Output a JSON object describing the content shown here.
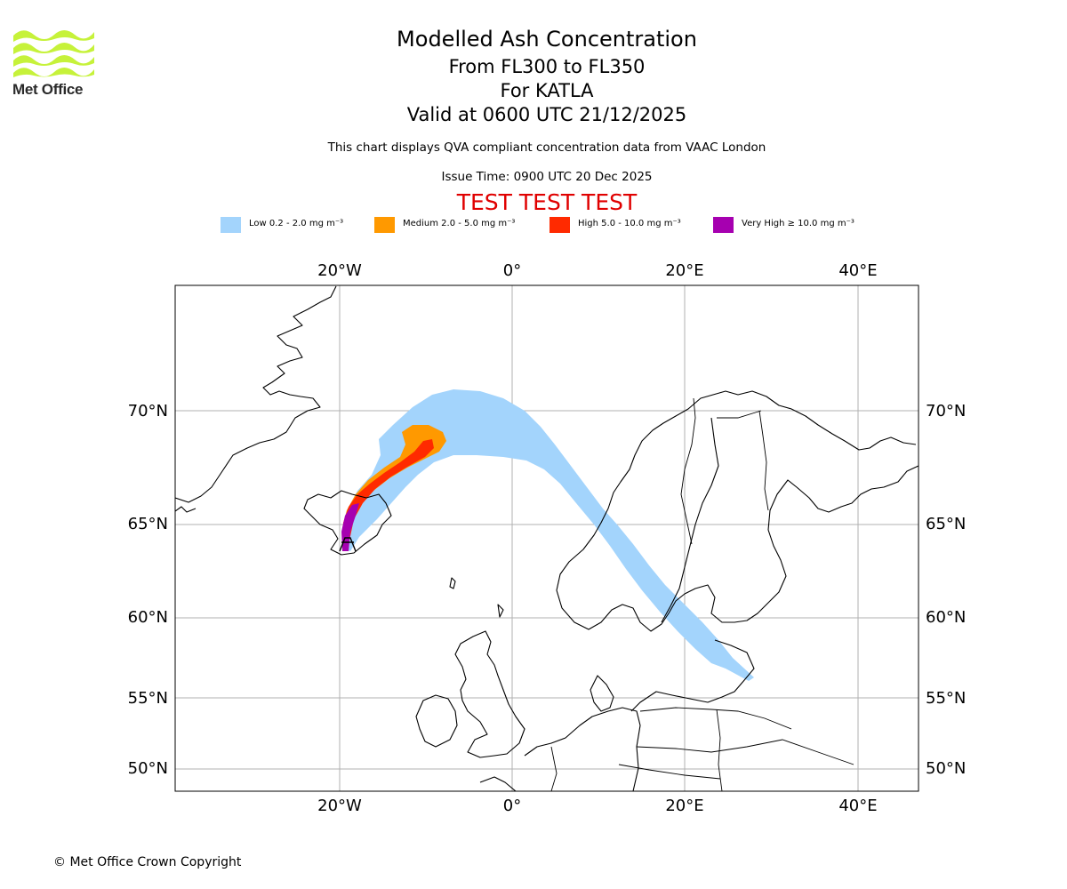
{
  "logo": {
    "name": "Met Office",
    "color": "#c6f23a"
  },
  "title": {
    "main": "Modelled Ash Concentration",
    "levels": "From FL300 to FL350",
    "volcano": "For KATLA",
    "valid": "Valid at 0600 UTC 21/12/2025"
  },
  "subtitle": "This chart displays QVA compliant concentration data from VAAC London",
  "issue_time": "Issue Time: 0900 UTC 20 Dec 2025",
  "test_banner": "TEST TEST TEST",
  "legend": [
    {
      "label": "Low 0.2 - 2.0 mg m⁻³",
      "color": "#a3d4fc"
    },
    {
      "label": "Medium 2.0 - 5.0 mg m⁻³",
      "color": "#ff9900"
    },
    {
      "label": "High 5.0 - 10.0 mg m⁻³",
      "color": "#ff2a00"
    },
    {
      "label": "Very High  ≥  10.0 mg m⁻³",
      "color": "#a600b0"
    }
  ],
  "axes": {
    "longitude_labels": [
      "20°W",
      "0°",
      "20°E",
      "40°E"
    ],
    "latitude_labels": [
      "70°N",
      "65°N",
      "60°N",
      "55°N",
      "50°N"
    ]
  },
  "copyright": "© Met Office Crown Copyright"
}
